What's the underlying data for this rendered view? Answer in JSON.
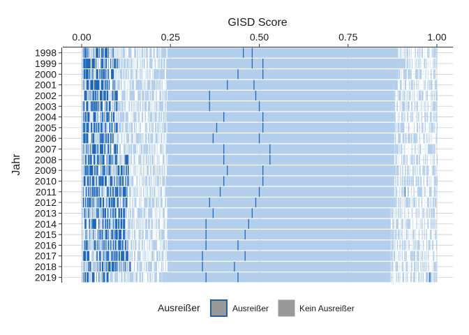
{
  "chart_data": {
    "type": "barcode",
    "xlabel": "GISD Score",
    "ylabel": "Jahr",
    "x_ticks": [
      0.0,
      0.25,
      0.5,
      0.75,
      1.0
    ],
    "x_tick_labels": [
      "0.00",
      "0.25",
      "0.50",
      "0.75",
      "1.00"
    ],
    "xlim": [
      -0.03,
      1.03
    ],
    "years": [
      "1998",
      "1999",
      "2000",
      "2001",
      "2002",
      "2003",
      "2004",
      "2005",
      "2006",
      "2007",
      "2008",
      "2009",
      "2010",
      "2011",
      "2012",
      "2013",
      "2014",
      "2015",
      "2016",
      "2017",
      "2018",
      "2019"
    ],
    "dense_band": {
      "start": [
        0.24,
        0.24,
        0.24,
        0.24,
        0.24,
        0.24,
        0.24,
        0.24,
        0.24,
        0.24,
        0.24,
        0.24,
        0.24,
        0.24,
        0.24,
        0.24,
        0.24,
        0.24,
        0.24,
        0.24,
        0.24,
        0.24
      ],
      "end": [
        0.89,
        0.89,
        0.89,
        0.88,
        0.88,
        0.88,
        0.88,
        0.88,
        0.88,
        0.88,
        0.88,
        0.88,
        0.88,
        0.88,
        0.88,
        0.87,
        0.87,
        0.87,
        0.87,
        0.87,
        0.87,
        0.87
      ]
    },
    "outlier_low_max": [
      0.09,
      0.1,
      0.09,
      0.1,
      0.1,
      0.1,
      0.09,
      0.1,
      0.09,
      0.1,
      0.13,
      0.13,
      0.13,
      0.13,
      0.13,
      0.12,
      0.12,
      0.12,
      0.13,
      0.14,
      0.14,
      0.08
    ],
    "marked_outliers": [
      {
        "year": "1998",
        "x": [
          0.455,
          0.48
        ]
      },
      {
        "year": "1999",
        "x": [
          0.48,
          0.51
        ]
      },
      {
        "year": "2000",
        "x": [
          0.44,
          0.51
        ]
      },
      {
        "year": "2001",
        "x": [
          0.41,
          0.485
        ]
      },
      {
        "year": "2002",
        "x": [
          0.36,
          0.49
        ]
      },
      {
        "year": "2003",
        "x": [
          0.36,
          0.5
        ]
      },
      {
        "year": "2004",
        "x": [
          0.4,
          0.51
        ]
      },
      {
        "year": "2005",
        "x": [
          0.38,
          0.51
        ]
      },
      {
        "year": "2006",
        "x": [
          0.37,
          0.5
        ]
      },
      {
        "year": "2007",
        "x": [
          0.4,
          0.53
        ]
      },
      {
        "year": "2008",
        "x": [
          0.4,
          0.53
        ]
      },
      {
        "year": "2009",
        "x": [
          0.41,
          0.51
        ]
      },
      {
        "year": "2010",
        "x": [
          0.4,
          0.51
        ]
      },
      {
        "year": "2011",
        "x": [
          0.39,
          0.5,
          0.91
        ]
      },
      {
        "year": "2012",
        "x": [
          0.36,
          0.49
        ]
      },
      {
        "year": "2013",
        "x": [
          0.37,
          0.48
        ]
      },
      {
        "year": "2014",
        "x": [
          0.35,
          0.47
        ]
      },
      {
        "year": "2015",
        "x": [
          0.35,
          0.46
        ]
      },
      {
        "year": "2016",
        "x": [
          0.35,
          0.44
        ]
      },
      {
        "year": "2017",
        "x": [
          0.34,
          0.46
        ]
      },
      {
        "year": "2018",
        "x": [
          0.34,
          0.43
        ]
      },
      {
        "year": "2019",
        "x": [
          0.35,
          0.44,
          0.98
        ]
      }
    ],
    "legend": {
      "title": "Ausreißer",
      "position": "bottom",
      "items": [
        {
          "label": "Ausreißer",
          "color": "#999999",
          "border": "#1f5fa5"
        },
        {
          "label": "Kein Ausreißer",
          "color": "#999999",
          "border": "#999999"
        }
      ]
    },
    "colors": {
      "outlier": "#1f67b8",
      "non_outlier": "#b4cfeb",
      "grid": "#cccccc",
      "axis": "#333333",
      "background": "#ffffff"
    },
    "grid": true
  }
}
